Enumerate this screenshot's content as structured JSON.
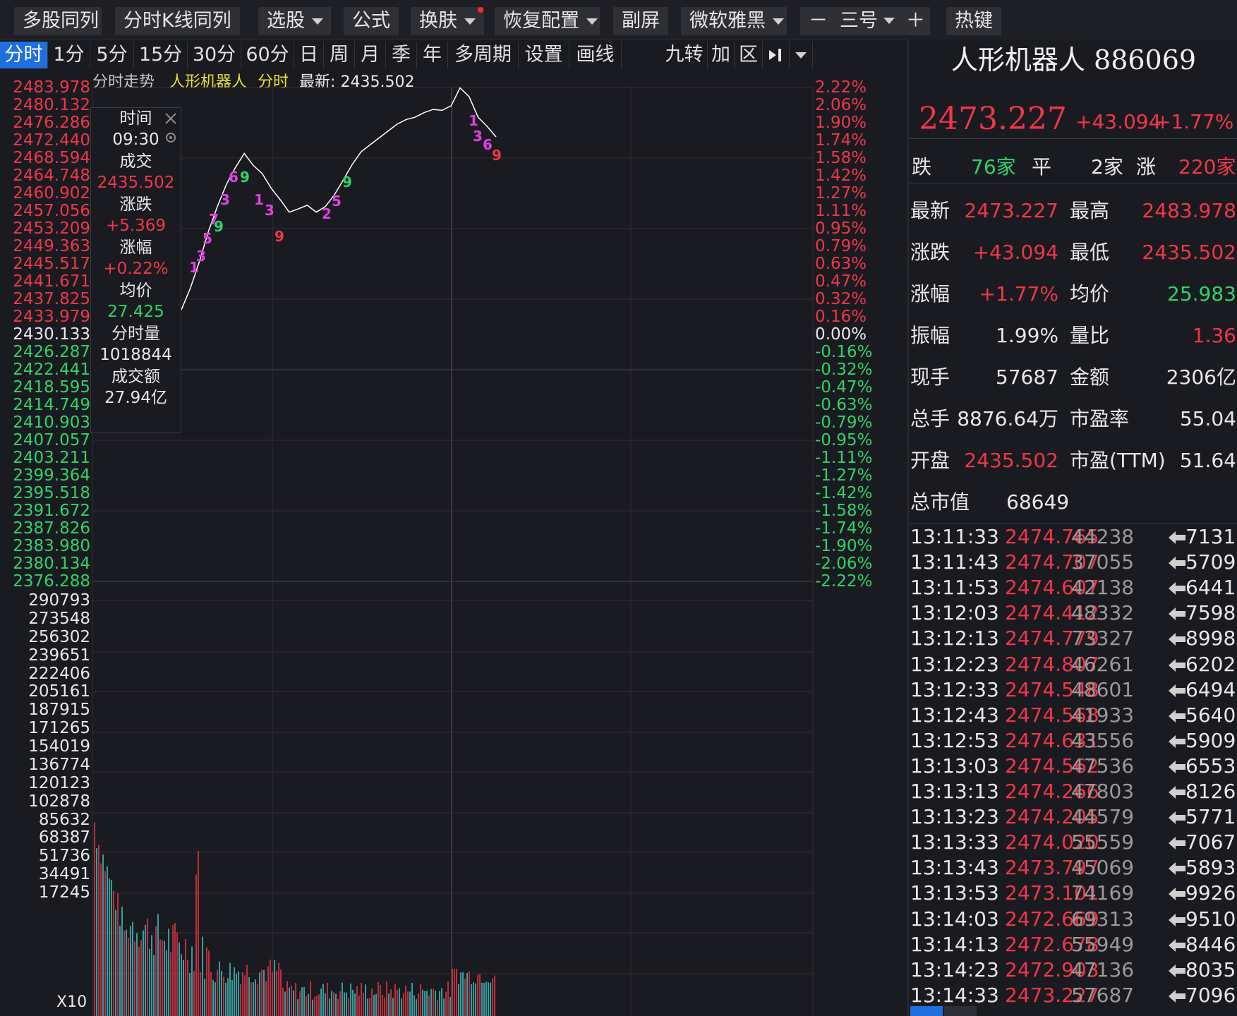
{
  "toolbar": {
    "multi_compare": "多股同列",
    "kline_compare": "分时K线同列",
    "stock_select": "选股",
    "formula": "公式",
    "skin": "换肤",
    "restore_config": "恢复配置",
    "sub_screen": "副屏",
    "font_name": "微软雅黑",
    "font_minus": "－",
    "font_size": "三号",
    "font_plus": "＋",
    "hotkey": "热键"
  },
  "tabs": [
    "分时",
    "1分",
    "5分",
    "15分",
    "30分",
    "60分",
    "日",
    "周",
    "月",
    "季",
    "年",
    "多周期",
    "设置",
    "画线"
  ],
  "tools": {
    "nine": "九转",
    "add": "加",
    "range": "区"
  },
  "chart": {
    "header_title": "分时走势",
    "stock_name": "人形机器人",
    "header_mode": "分时",
    "latest_label": "最新:",
    "latest_value": "2435.502",
    "price_ticks": [
      "2483.978",
      "2480.132",
      "2476.286",
      "2472.440",
      "2468.594",
      "2464.748",
      "2460.902",
      "2457.056",
      "2453.209",
      "2449.363",
      "2445.517",
      "2441.671",
      "2437.825",
      "2433.979",
      "2430.133",
      "2426.287",
      "2422.441",
      "2418.595",
      "2414.749",
      "2410.903",
      "2407.057",
      "2403.211",
      "2399.364",
      "2395.518",
      "2391.672",
      "2387.826",
      "2383.980",
      "2380.134",
      "2376.288"
    ],
    "pct_ticks": [
      "2.22%",
      "2.06%",
      "1.90%",
      "1.74%",
      "1.58%",
      "1.42%",
      "1.27%",
      "1.11%",
      "0.95%",
      "0.79%",
      "0.63%",
      "0.47%",
      "0.32%",
      "0.16%",
      "0.00%",
      "-0.16%",
      "-0.32%",
      "-0.47%",
      "-0.63%",
      "-0.79%",
      "-0.95%",
      "-1.11%",
      "-1.27%",
      "-1.42%",
      "-1.58%",
      "-1.74%",
      "-1.90%",
      "-2.06%",
      "-2.22%"
    ],
    "vol_ticks": [
      "290793",
      "273548",
      "256302",
      "239651",
      "222406",
      "205161",
      "187915",
      "171265",
      "154019",
      "136774",
      "120123",
      "102878",
      "85632",
      "68387",
      "51736",
      "34491",
      "17245"
    ],
    "vol_unit": "X10",
    "colors": {
      "up": "#f0364a",
      "down": "#2fd36a",
      "line": "#ffffff",
      "nine": "#e040e0"
    }
  },
  "tooltip": {
    "time_label": "时间",
    "time": "09:30",
    "deal_label": "成交",
    "deal": "2435.502",
    "change_label": "涨跌",
    "change": "+5.369",
    "pct_label": "涨幅",
    "pct": "+0.22%",
    "avg_label": "均价",
    "avg": "27.425",
    "vol_label": "分时量",
    "vol": "1018844",
    "amount_label": "成交额",
    "amount": "27.94亿"
  },
  "chart_data": {
    "type": "line",
    "title": "分时走势",
    "series": [
      {
        "name": "人形机器人",
        "values": [
          2435.5,
          2440.2,
          2446.0,
          2452.5,
          2458.0,
          2462.8,
          2466.5,
          2469.6,
          2467.0,
          2465.2,
          2462.0,
          2459.5,
          2456.8,
          2457.5,
          2458.3,
          2456.8,
          2458.0,
          2460.5,
          2463.8,
          2467.2,
          2470.0,
          2471.5,
          2473.0,
          2474.5,
          2476.0,
          2477.0,
          2477.5,
          2478.5,
          2479.2,
          2479.0,
          2480.0,
          2483.9,
          2482.0,
          2477.5,
          2475.5,
          2473.2
        ]
      }
    ],
    "ylim": [
      2376.288,
      2483.978
    ],
    "base": 2430.133
  },
  "panel": {
    "name": "人形机器人",
    "code": "886069",
    "price": "2473.227",
    "change": "+43.094",
    "pct": "+1.77%",
    "fall_label": "跌",
    "fall_count": "76家",
    "flat_label": "平",
    "flat_count": "2家",
    "rise_label": "涨",
    "rise_count": "220家",
    "stats": [
      {
        "l1": "最新",
        "v1": "2473.227",
        "c1": "up",
        "l2": "最高",
        "v2": "2483.978",
        "c2": "up"
      },
      {
        "l1": "涨跌",
        "v1": "+43.094",
        "c1": "up",
        "l2": "最低",
        "v2": "2435.502",
        "c2": "up"
      },
      {
        "l1": "涨幅",
        "v1": "+1.77%",
        "c1": "up",
        "l2": "均价",
        "v2": "25.983",
        "c2": "dn"
      },
      {
        "l1": "振幅",
        "v1": "1.99%",
        "c1": "wh",
        "l2": "量比",
        "v2": "1.36",
        "c2": "up"
      },
      {
        "l1": "现手",
        "v1": "57687",
        "c1": "wh",
        "l2": "金额",
        "v2": "2306亿",
        "c2": "wh"
      },
      {
        "l1": "总手",
        "v1": "8876.64万",
        "c1": "wh",
        "l2": "市盈率",
        "v2": "55.04",
        "c2": "wh"
      },
      {
        "l1": "开盘",
        "v1": "2435.502",
        "c1": "up",
        "l2": "市盈(TTM)",
        "v2": "51.64",
        "c2": "wh"
      },
      {
        "l1": "总市值",
        "v1": "68649",
        "c1": "wh",
        "l2": "",
        "v2": "",
        "c2": "wh"
      }
    ],
    "ticks": [
      {
        "t": "13:11:33",
        "p": "2474.765",
        "v": "44238",
        "n": "7131"
      },
      {
        "t": "13:11:43",
        "p": "2474.707",
        "v": "37055",
        "n": "5709"
      },
      {
        "t": "13:11:53",
        "p": "2474.607",
        "v": "42138",
        "n": "6441"
      },
      {
        "t": "13:12:03",
        "p": "2474.412",
        "v": "48332",
        "n": "7598"
      },
      {
        "t": "13:12:13",
        "p": "2474.779",
        "v": "73327",
        "n": "8998"
      },
      {
        "t": "13:12:23",
        "p": "2474.807",
        "v": "46261",
        "n": "6202"
      },
      {
        "t": "13:12:33",
        "p": "2474.548",
        "v": "48601",
        "n": "6494"
      },
      {
        "t": "13:12:43",
        "p": "2474.568",
        "v": "41933",
        "n": "5640"
      },
      {
        "t": "13:12:53",
        "p": "2474.631",
        "v": "43556",
        "n": "5909"
      },
      {
        "t": "13:13:03",
        "p": "2474.562",
        "v": "47536",
        "n": "6553"
      },
      {
        "t": "13:13:13",
        "p": "2474.266",
        "v": "47803",
        "n": "8126"
      },
      {
        "t": "13:13:23",
        "p": "2474.205",
        "v": "44579",
        "n": "5771"
      },
      {
        "t": "13:13:33",
        "p": "2474.020",
        "v": "55559",
        "n": "7067"
      },
      {
        "t": "13:13:43",
        "p": "2473.797",
        "v": "45069",
        "n": "5893"
      },
      {
        "t": "13:13:53",
        "p": "2473.101",
        "v": "74169",
        "n": "9926"
      },
      {
        "t": "13:14:03",
        "p": "2472.669",
        "v": "69313",
        "n": "9510"
      },
      {
        "t": "13:14:13",
        "p": "2472.678",
        "v": "55949",
        "n": "8446"
      },
      {
        "t": "13:14:23",
        "p": "2472.903",
        "v": "47136",
        "n": "8035"
      },
      {
        "t": "13:14:33",
        "p": "2473.227",
        "v": "57687",
        "n": "7096"
      }
    ]
  }
}
